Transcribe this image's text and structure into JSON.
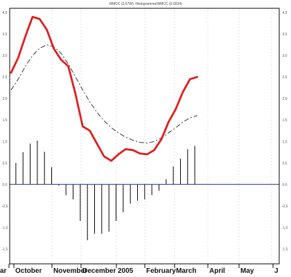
{
  "chart_data": {
    "type": "line",
    "title": "WMCC (2.67W), Histogramma/WMCC (0.0034)",
    "xlabel": "",
    "ylabel": "",
    "ylim": [
      -1.85,
      4.1
    ],
    "yticks": [
      4.0,
      3.5,
      3.0,
      2.5,
      2.0,
      1.5,
      1.0,
      0.5,
      0.0,
      -0.5,
      -1.0,
      -1.5
    ],
    "ytick_labels": [
      "4.0",
      "3.5",
      "3.0",
      "2.5",
      "2.0",
      "1.5",
      "1.0",
      "0.5",
      "0.0",
      "-0.5",
      "-1.0",
      "-1.5"
    ],
    "x_axis_labels": [
      "ar",
      "October",
      "November",
      "December",
      "2005",
      "February",
      "March",
      "April",
      "May",
      "J"
    ],
    "grid": true,
    "colors": {
      "main": "#e11b1b",
      "signal": "#333333",
      "histogram": "#000000",
      "zero_line": "#1a2a8c"
    },
    "series": [
      {
        "style": "solid-red-thick",
        "x": [
          0,
          3,
          6,
          9,
          12,
          15,
          18,
          21,
          24,
          27,
          30,
          33,
          36,
          39,
          42,
          45,
          48,
          51,
          54,
          57,
          60,
          63,
          66,
          69,
          72,
          75,
          78
        ],
        "values": [
          2.6,
          2.95,
          3.45,
          3.9,
          3.85,
          3.6,
          3.15,
          2.9,
          2.75,
          2.1,
          1.35,
          1.25,
          0.95,
          0.65,
          0.55,
          0.7,
          0.82,
          0.8,
          0.72,
          0.7,
          0.8,
          1.05,
          1.45,
          1.75,
          2.15,
          2.45,
          2.5
        ]
      },
      {
        "style": "dashed-dark",
        "x": [
          0,
          3,
          6,
          9,
          12,
          15,
          18,
          21,
          24,
          27,
          30,
          33,
          36,
          39,
          42,
          45,
          48,
          51,
          54,
          57,
          60,
          63,
          66,
          69,
          72,
          75,
          78
        ],
        "values": [
          2.2,
          2.45,
          2.75,
          3.0,
          3.17,
          3.25,
          3.2,
          3.05,
          2.8,
          2.5,
          2.2,
          1.92,
          1.68,
          1.48,
          1.32,
          1.2,
          1.1,
          1.03,
          0.98,
          0.96,
          1.0,
          1.08,
          1.2,
          1.32,
          1.45,
          1.55,
          1.6
        ]
      },
      {
        "style": "histogram",
        "x": [
          2,
          5,
          8,
          11,
          14,
          17,
          20,
          23,
          26,
          29,
          32,
          35,
          38,
          41,
          44,
          47,
          50,
          53,
          56,
          59,
          62,
          65,
          68,
          71,
          74,
          77
        ],
        "values": [
          0.5,
          0.75,
          0.95,
          1.02,
          0.76,
          0.4,
          -0.03,
          -0.25,
          -0.35,
          -0.85,
          -1.3,
          -1.15,
          -1.15,
          -1.1,
          -0.85,
          -0.65,
          -0.45,
          -0.38,
          -0.35,
          -0.25,
          -0.15,
          0.12,
          0.42,
          0.6,
          0.82,
          0.9
        ]
      }
    ]
  }
}
